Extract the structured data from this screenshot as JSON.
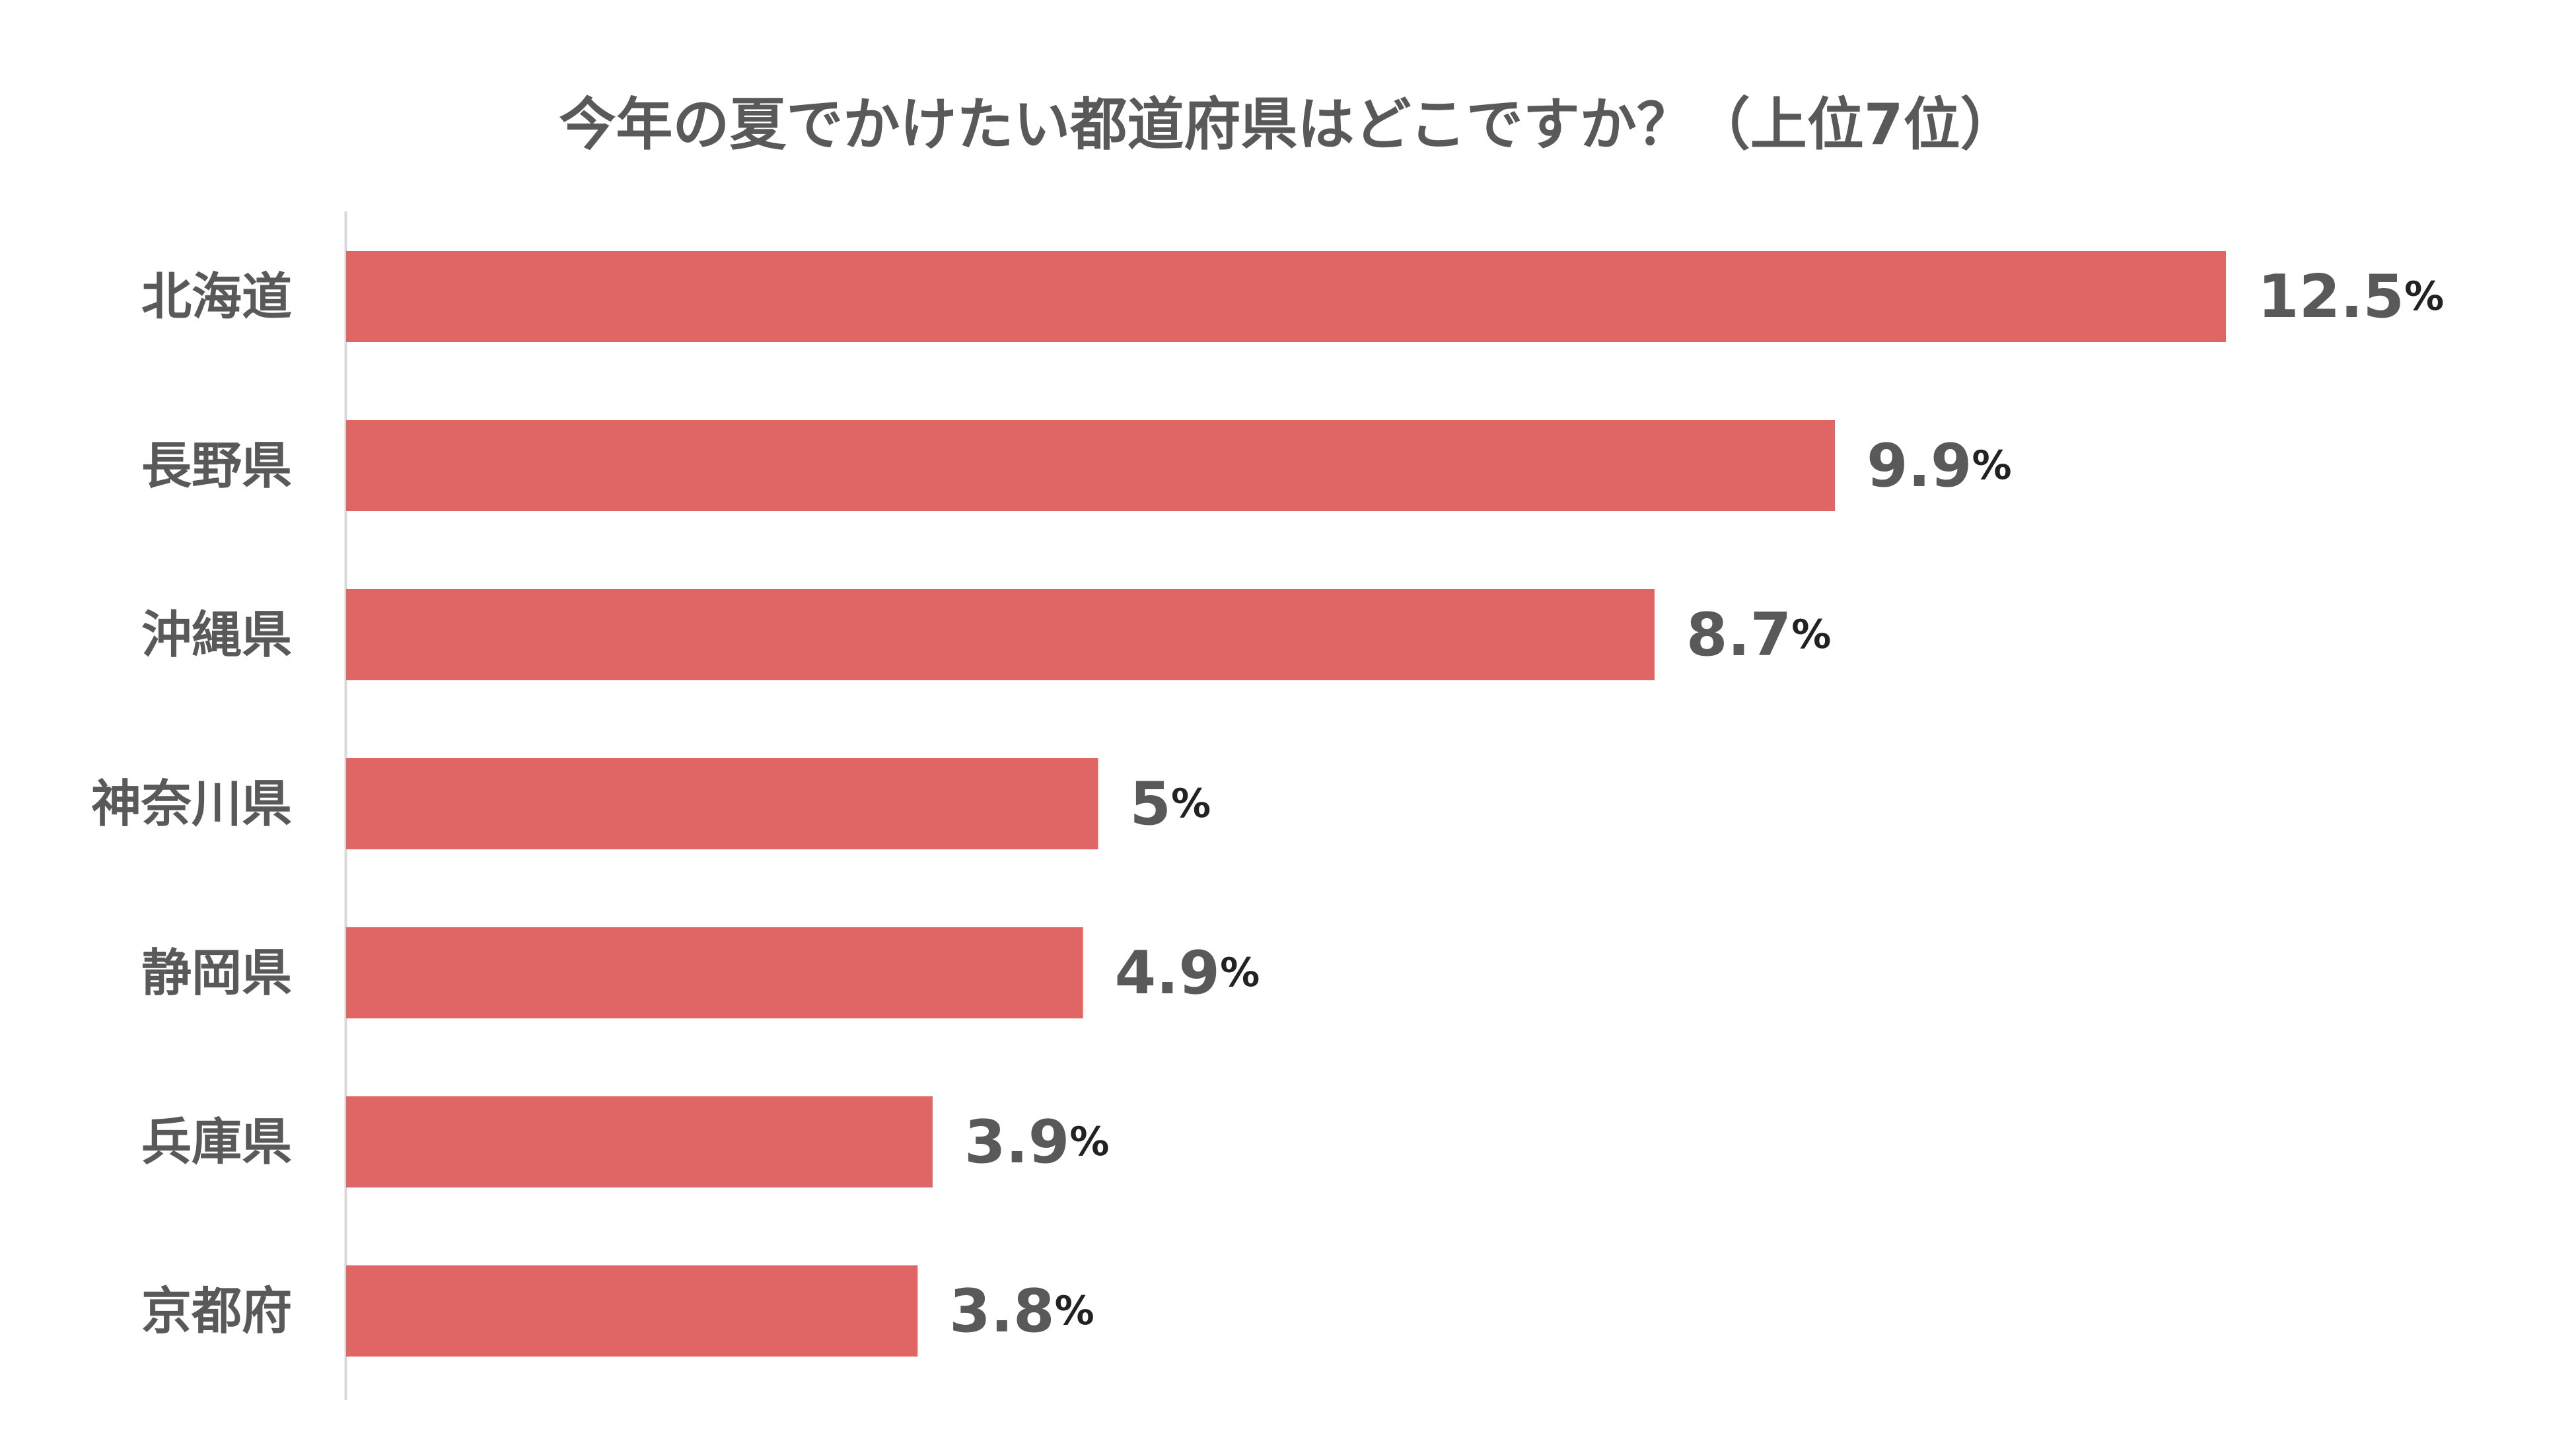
{
  "chart_data": {
    "type": "bar",
    "orientation": "horizontal",
    "title": "今年の夏でかけたい都道府県はどこですか？（上位7位）",
    "xlabel": "",
    "ylabel": "",
    "unit": "%",
    "grid": false,
    "categories": [
      "北海道",
      "長野県",
      "沖縄県",
      "神奈川県",
      "静岡県",
      "兵庫県",
      "京都府"
    ],
    "values": [
      12.5,
      9.9,
      8.7,
      5,
      4.9,
      3.9,
      3.8
    ],
    "value_labels": [
      "12.5",
      "9.9",
      "8.7",
      "5",
      "4.9",
      "3.9",
      "3.8"
    ],
    "xlim": [
      0,
      12.5
    ],
    "colors": {
      "bar": "#E06666",
      "text": "#595959",
      "percent_sign": "#222222",
      "axis": "#D9D9D9"
    }
  }
}
